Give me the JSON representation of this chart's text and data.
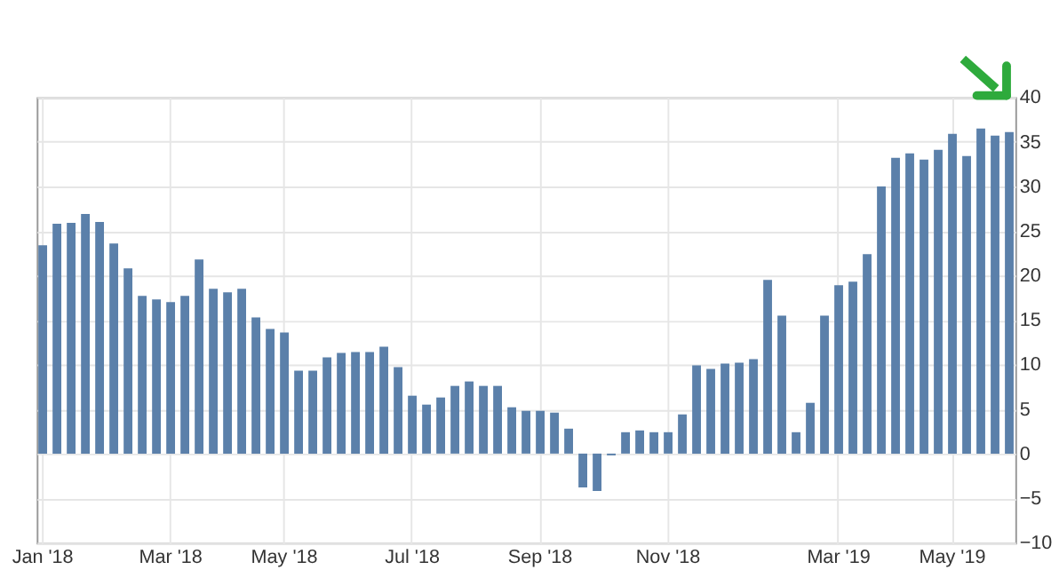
{
  "chart_data": {
    "type": "bar",
    "categories": [
      "Jan '18",
      null,
      null,
      null,
      null,
      null,
      null,
      null,
      null,
      "Mar '18",
      null,
      null,
      null,
      null,
      null,
      null,
      null,
      "May '18",
      null,
      null,
      null,
      null,
      null,
      null,
      null,
      null,
      "Jul '18",
      null,
      null,
      null,
      null,
      null,
      null,
      null,
      null,
      "Sep '18",
      null,
      null,
      null,
      null,
      null,
      null,
      null,
      null,
      "Nov '18",
      null,
      null,
      null,
      null,
      null,
      null,
      null,
      null,
      null,
      null,
      null,
      "Mar '19",
      null,
      null,
      null,
      null,
      null,
      null,
      null,
      "May '19",
      null,
      null,
      null,
      null
    ],
    "values": [
      23.4,
      25.8,
      25.9,
      26.9,
      26.0,
      23.6,
      20.8,
      17.7,
      17.3,
      17.0,
      17.7,
      21.8,
      18.5,
      18.1,
      18.5,
      15.3,
      14.0,
      13.6,
      9.3,
      9.3,
      10.8,
      11.3,
      11.4,
      11.4,
      12.0,
      9.7,
      6.5,
      5.5,
      6.3,
      7.6,
      8.1,
      7.6,
      7.6,
      5.2,
      4.8,
      4.8,
      4.6,
      2.8,
      -3.8,
      -4.2,
      -0.2,
      2.4,
      2.6,
      2.4,
      2.4,
      4.4,
      9.9,
      9.5,
      10.1,
      10.2,
      10.6,
      19.5,
      15.5,
      2.4,
      5.7,
      15.5,
      18.9,
      19.3,
      22.4,
      30.0,
      33.2,
      33.7,
      33.0,
      34.1,
      35.9,
      33.4,
      36.5,
      35.7,
      36.1
    ],
    "color": "#5b80aa",
    "ylim": [
      -10,
      40
    ],
    "yticks": [
      -10,
      -5,
      0,
      5,
      10,
      15,
      20,
      25,
      30,
      35,
      40
    ],
    "grid": true
  }
}
